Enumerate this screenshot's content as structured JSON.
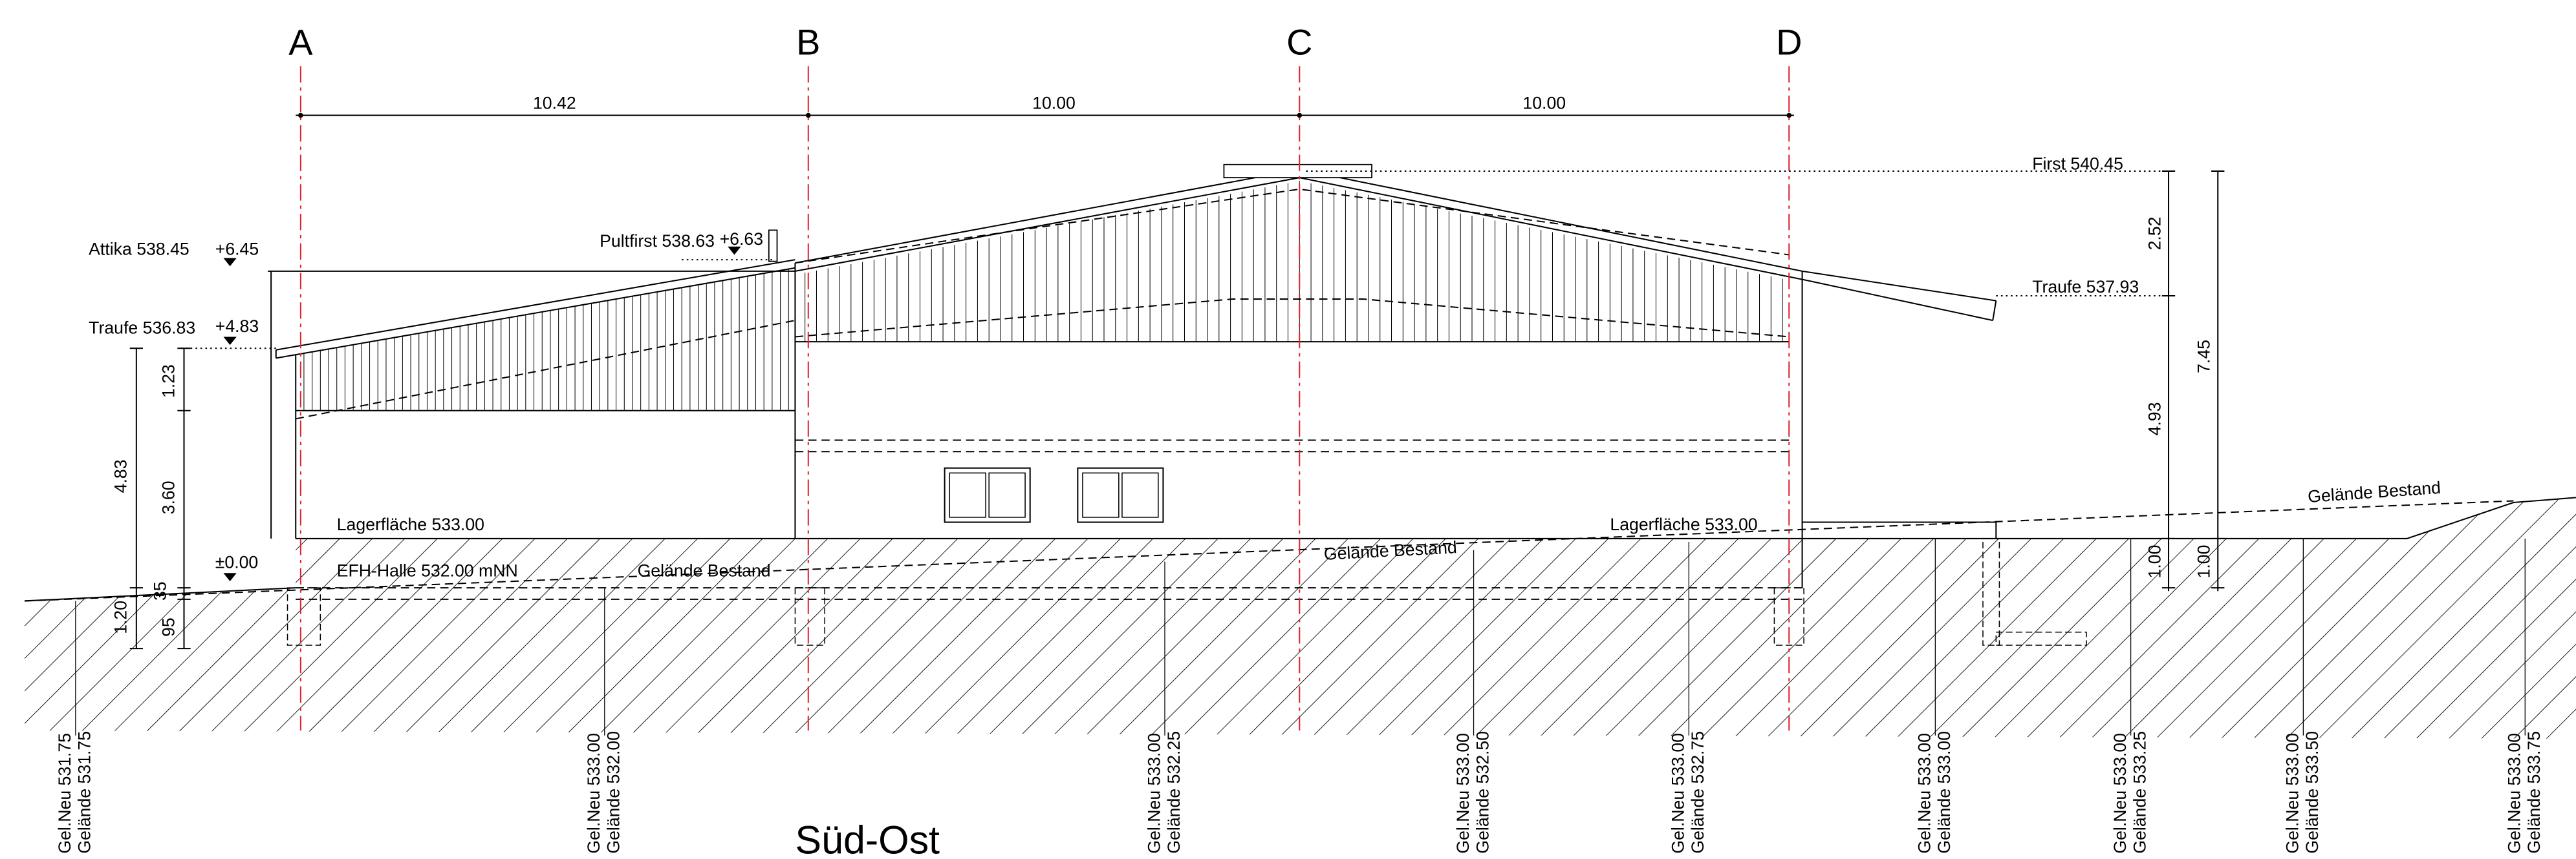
{
  "axes": [
    "A",
    "B",
    "C",
    "D"
  ],
  "dimensions": {
    "top": [
      "10.42",
      "10.00",
      "10.00"
    ],
    "left": [
      "1.23",
      "4.83",
      "3.60",
      "1.20",
      "35",
      "95"
    ],
    "right": [
      "2.52",
      "4.93",
      "7.45",
      "1.00",
      "1.00"
    ]
  },
  "levels": {
    "attika": "Attika 538.45",
    "attika_rel": "+6.45",
    "pultfirst": "Pultfirst 538.63",
    "pultfirst_rel": "+6.63",
    "traufe_left": "Traufe 536.83",
    "traufe_left_rel": "+4.83",
    "zero": "±0.00",
    "first": "First 540.45",
    "traufe_right": "Traufe 537.93"
  },
  "annotations": [
    "Lagerfläche 533.00",
    "Lagerfläche 533.00",
    "EFH-Halle 532.00 mNN",
    "Gelände Bestand",
    "Gelände Bestand",
    "Gelände Bestand"
  ],
  "terrain_points": [
    {
      "new": "Gel.Neu 531.75",
      "existing": "Gelände 531.75"
    },
    {
      "new": "Gel.Neu 533.00",
      "existing": "Gelände 532.00"
    },
    {
      "new": "Gel.Neu 533.00",
      "existing": "Gelände 532.25"
    },
    {
      "new": "Gel.Neu 533.00",
      "existing": "Gelände 532.50"
    },
    {
      "new": "Gel.Neu 533.00",
      "existing": "Gelände 532.75"
    },
    {
      "new": "Gel.Neu 533.00",
      "existing": "Gelände 533.00"
    },
    {
      "new": "Gel.Neu 533.00",
      "existing": "Gelände 533.25"
    },
    {
      "new": "Gel.Neu 533.00",
      "existing": "Gelände 533.50"
    },
    {
      "new": "Gel.Neu 533.00",
      "existing": "Gelände 533.75"
    }
  ],
  "title": "Süd-Ost"
}
